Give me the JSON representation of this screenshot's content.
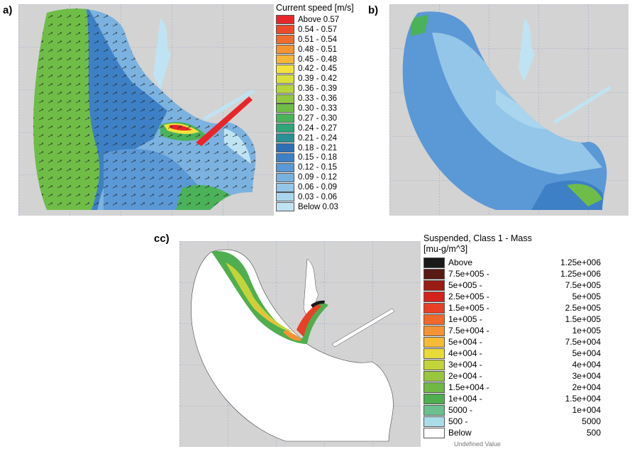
{
  "panels": {
    "a": "a)",
    "b": "b)",
    "c": "cc)"
  },
  "speed_legend": {
    "title": "Current speed [m/s]",
    "items": [
      {
        "label": "Above 0.57",
        "color": "#e8262a"
      },
      {
        "label": "0.54 - 0.57",
        "color": "#ec4a2a"
      },
      {
        "label": "0.51 - 0.54",
        "color": "#f06c2c"
      },
      {
        "label": "0.48 - 0.51",
        "color": "#f49433"
      },
      {
        "label": "0.45 - 0.48",
        "color": "#f6b739"
      },
      {
        "label": "0.42 - 0.45",
        "color": "#f4e23d"
      },
      {
        "label": "0.39 - 0.42",
        "color": "#d9e03b"
      },
      {
        "label": "0.36 - 0.39",
        "color": "#b6d53c"
      },
      {
        "label": "0.33 - 0.36",
        "color": "#91c83f"
      },
      {
        "label": "0.30 - 0.33",
        "color": "#6fbd46"
      },
      {
        "label": "0.27 - 0.30",
        "color": "#4bb25a"
      },
      {
        "label": "0.24 - 0.27",
        "color": "#2fa57a"
      },
      {
        "label": "0.21 - 0.24",
        "color": "#2b8f96"
      },
      {
        "label": "0.18 - 0.21",
        "color": "#2f6fb6"
      },
      {
        "label": "0.15 - 0.18",
        "color": "#3d80c6"
      },
      {
        "label": "0.12 - 0.15",
        "color": "#5b98d6"
      },
      {
        "label": "0.09 - 0.12",
        "color": "#78b1e0"
      },
      {
        "label": "0.06 - 0.09",
        "color": "#93c6e8"
      },
      {
        "label": "0.03 - 0.06",
        "color": "#a9d6ee"
      },
      {
        "label": "Below 0.03",
        "color": "#bfe3f2"
      }
    ]
  },
  "mass_legend": {
    "title_line1": "Suspended, Class 1 - Mass",
    "title_line2": "[mu-g/m^3]",
    "items": [
      {
        "left": "Above",
        "right": "1.25e+006",
        "color": "#1a1a1a"
      },
      {
        "left": "7.5e+005 -",
        "right": "1.25e+006",
        "color": "#5a1a14"
      },
      {
        "left": "5e+005 -",
        "right": "7.5e+005",
        "color": "#9a1c17"
      },
      {
        "left": "2.5e+005 -",
        "right": "5e+005",
        "color": "#d4231e"
      },
      {
        "left": "1.5e+005 -",
        "right": "2.5e+005",
        "color": "#e84026"
      },
      {
        "left": "1e+005 -",
        "right": "1.5e+005",
        "color": "#f0682a"
      },
      {
        "left": "7.5e+004 -",
        "right": "1e+005",
        "color": "#f49333"
      },
      {
        "left": "5e+004 -",
        "right": "7.5e+004",
        "color": "#f5bb35"
      },
      {
        "left": "4e+004 -",
        "right": "5e+004",
        "color": "#e6db38"
      },
      {
        "left": "3e+004 -",
        "right": "4e+004",
        "color": "#c3d43a"
      },
      {
        "left": "2e+004 -",
        "right": "3e+004",
        "color": "#98c63c"
      },
      {
        "left": "1.5e+004 -",
        "right": "2e+004",
        "color": "#70b843"
      },
      {
        "left": "1e+004 -",
        "right": "1.5e+004",
        "color": "#4fae4f"
      },
      {
        "left": "5000 -",
        "right": "1e+004",
        "color": "#6cc08f"
      },
      {
        "left": "500 -",
        "right": "5000",
        "color": "#a9dde8"
      },
      {
        "left": "Below",
        "right": "500",
        "color": "#ffffff"
      }
    ],
    "footer": "Undefined Value"
  }
}
